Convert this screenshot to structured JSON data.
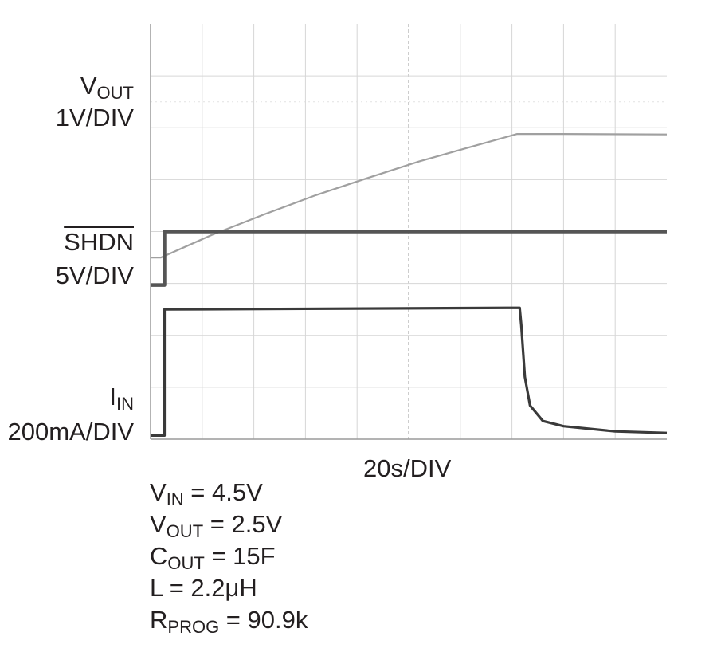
{
  "chart_data": {
    "type": "line",
    "x_unit": "s",
    "x_per_div": 20,
    "x_divisions": 10,
    "y_divisions": 8,
    "grid": true,
    "time_axis_label": "20s/DIV",
    "traces": [
      {
        "label": "V",
        "label_sub": "OUT",
        "scale": "1V/DIV",
        "color": "#a0a0a0",
        "points_div": [
          [
            0,
            3.5
          ],
          [
            0.2,
            3.5
          ],
          [
            1.2,
            3.94
          ],
          [
            2.2,
            4.33
          ],
          [
            3.2,
            4.7
          ],
          [
            4.2,
            5.03
          ],
          [
            5.2,
            5.35
          ],
          [
            6.2,
            5.63
          ],
          [
            7.1,
            5.88
          ],
          [
            8.0,
            5.88
          ],
          [
            10,
            5.87
          ]
        ]
      },
      {
        "label": "SHDN",
        "label_sub": "",
        "overline": true,
        "scale": "5V/DIV",
        "color": "#555555",
        "points_div": [
          [
            0,
            2.97
          ],
          [
            0.27,
            2.97
          ],
          [
            0.27,
            4.0
          ],
          [
            10,
            4.0
          ]
        ]
      },
      {
        "label": "I",
        "label_sub": "IN",
        "scale": "200mA/DIV",
        "color": "#3a3a3a",
        "points_div": [
          [
            0,
            0.07
          ],
          [
            0.27,
            0.07
          ],
          [
            0.27,
            2.5
          ],
          [
            7.15,
            2.53
          ],
          [
            7.18,
            2.2
          ],
          [
            7.25,
            1.2
          ],
          [
            7.35,
            0.65
          ],
          [
            7.6,
            0.35
          ],
          [
            8.0,
            0.25
          ],
          [
            9.0,
            0.15
          ],
          [
            10,
            0.12
          ]
        ]
      }
    ],
    "conditions": [
      {
        "main": "V",
        "sub": "IN",
        "rest": " = 4.5V"
      },
      {
        "main": "V",
        "sub": "OUT",
        "rest": " = 2.5V"
      },
      {
        "main": "C",
        "sub": "OUT",
        "rest": " = 15F"
      },
      {
        "main": "L = 2.2μH",
        "sub": "",
        "rest": ""
      },
      {
        "main": "R",
        "sub": "PROG",
        "rest": " = 90.9k"
      }
    ]
  }
}
